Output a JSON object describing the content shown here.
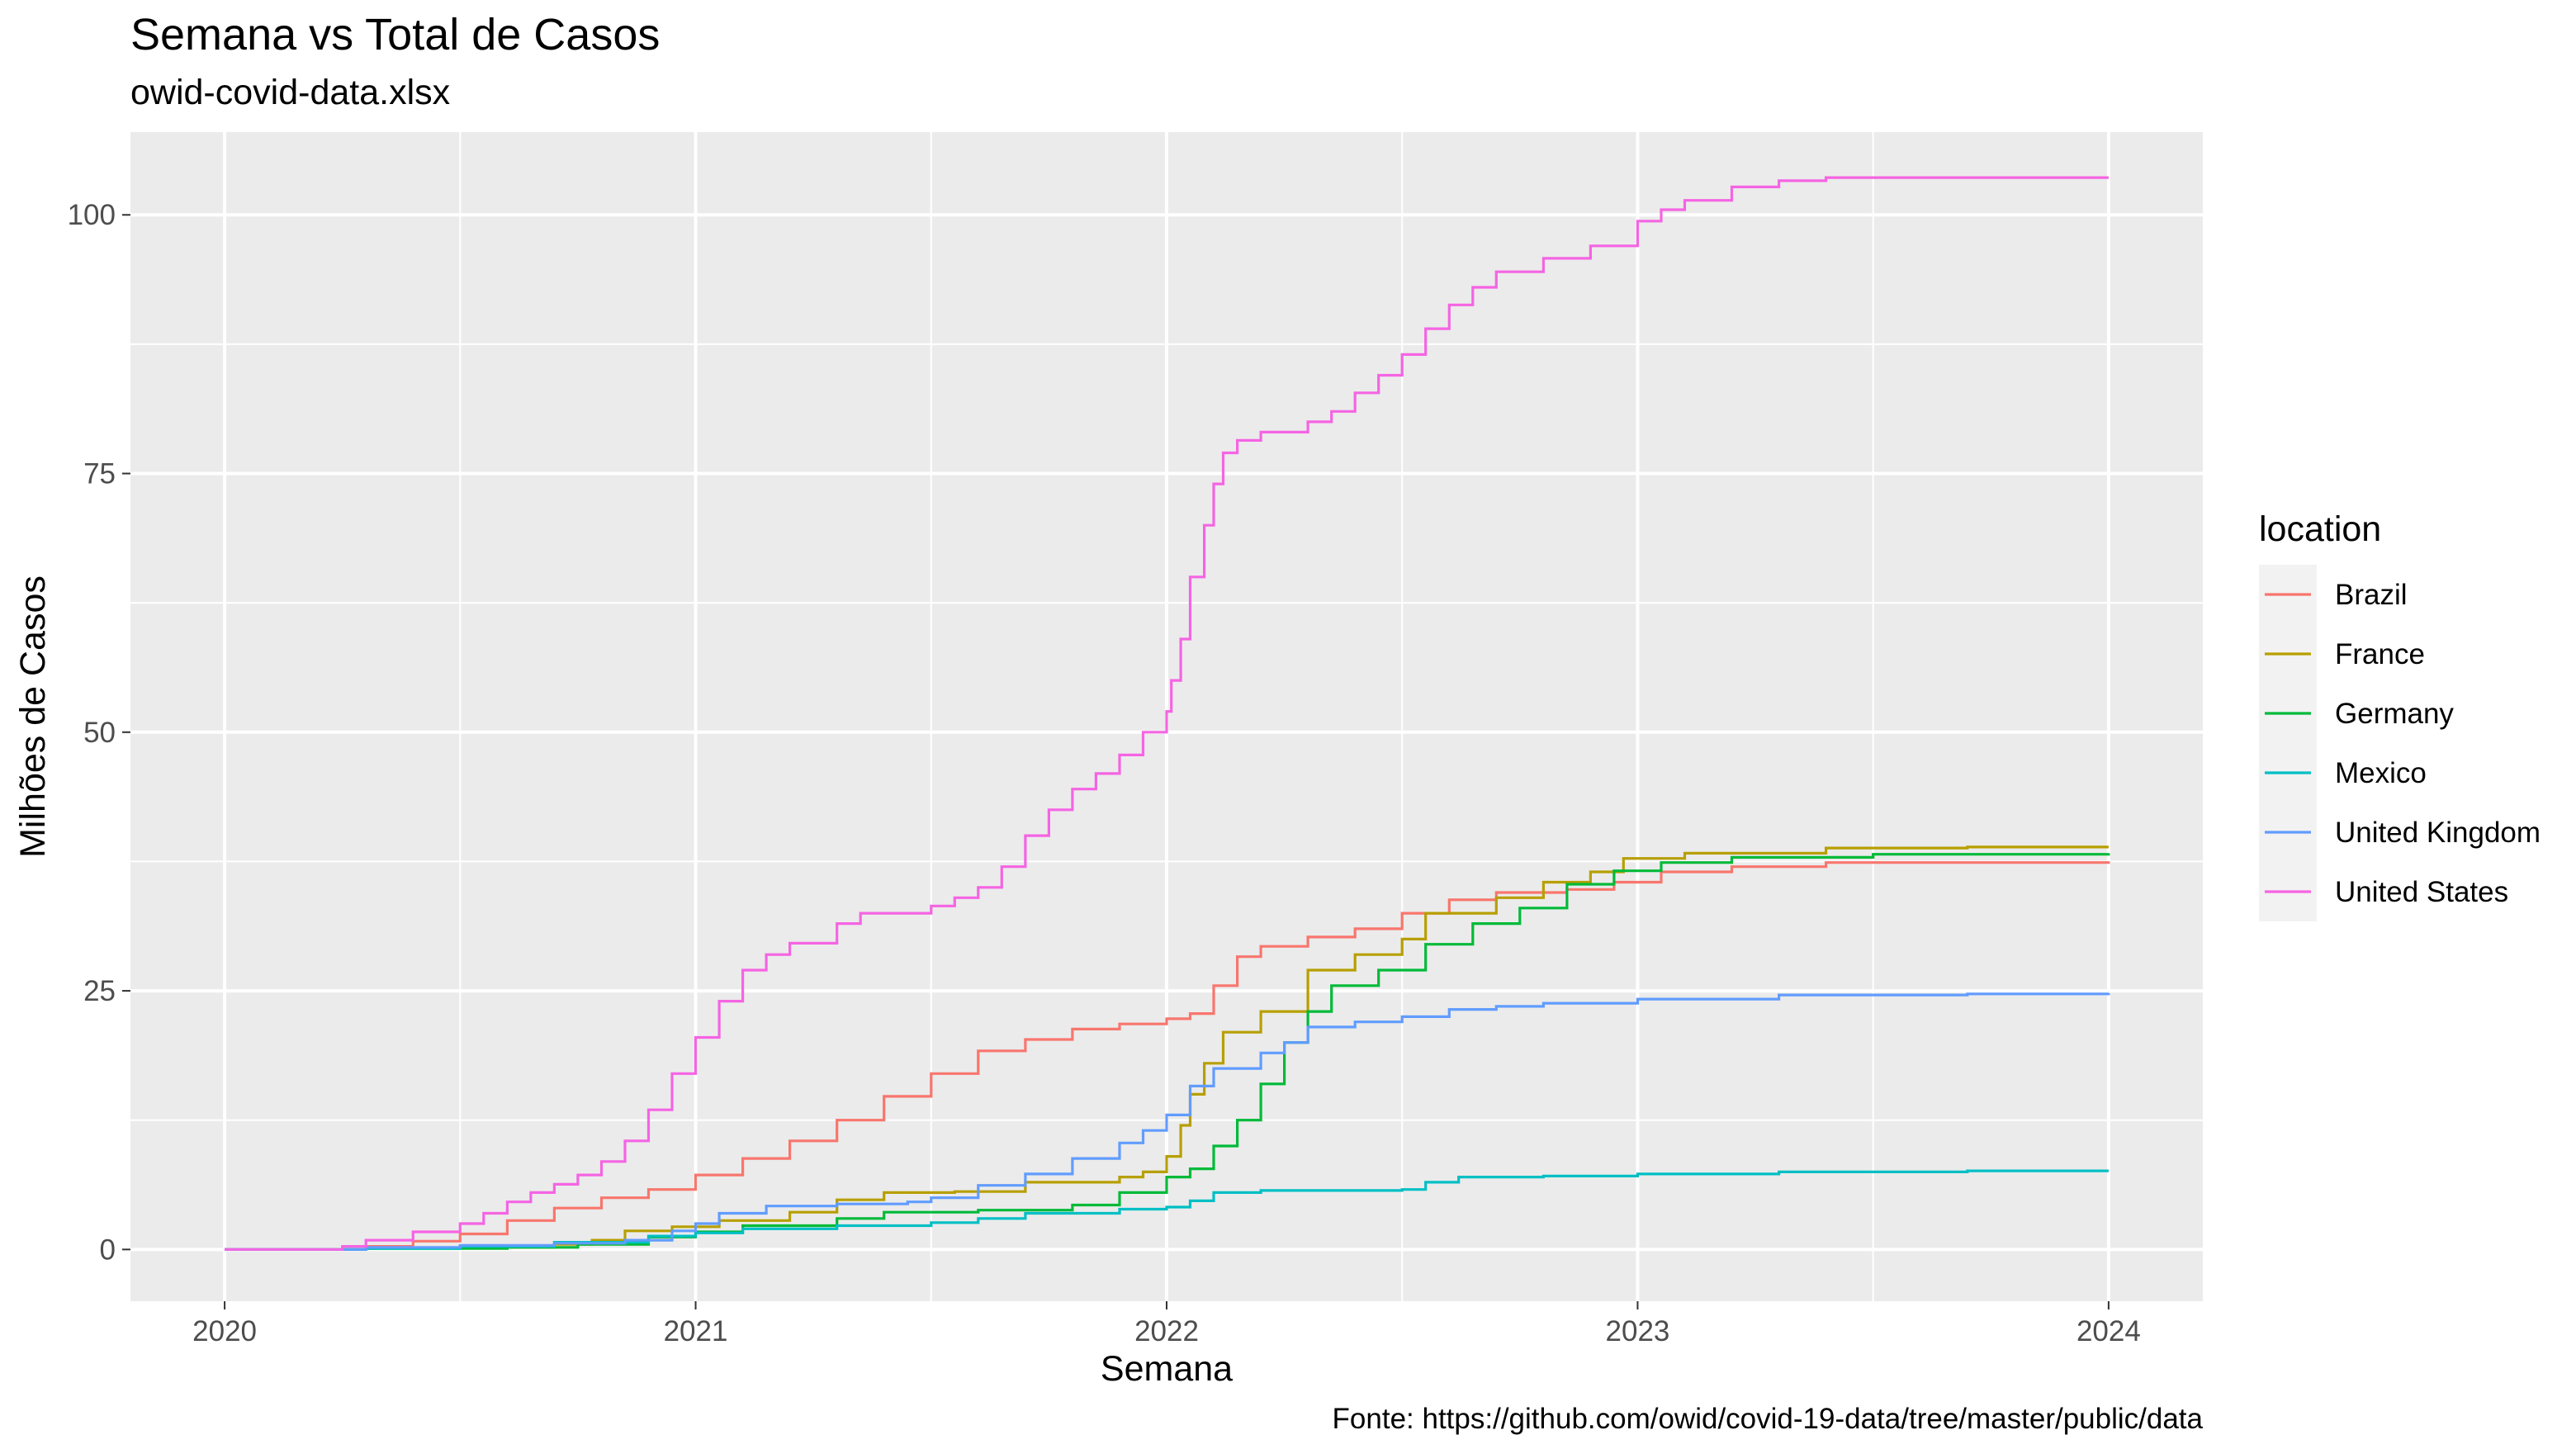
{
  "chart_data": {
    "type": "line",
    "title": "Semana vs Total de Casos",
    "subtitle": "owid-covid-data.xlsx",
    "xlabel": "Semana",
    "ylabel": "Milhões de Casos",
    "caption": "Fonte: https://github.com/owid/covid-19-data/tree/master/public/data",
    "legend_title": "location",
    "legend_position": "right",
    "grid": true,
    "xlim": [
      2019.8,
      2024.2
    ],
    "ylim": [
      -5,
      108
    ],
    "x_ticks": [
      2020,
      2021,
      2022,
      2023,
      2024
    ],
    "y_ticks": [
      0,
      25,
      50,
      75,
      100
    ],
    "x_tick_labels": [
      "2020",
      "2021",
      "2022",
      "2023",
      "2024"
    ],
    "y_tick_labels": [
      "0",
      "25",
      "50",
      "75",
      "100"
    ],
    "series": [
      {
        "name": "Brazil",
        "color": "#F8766D",
        "points": [
          [
            2020.0,
            0
          ],
          [
            2020.2,
            0
          ],
          [
            2020.3,
            0.3
          ],
          [
            2020.4,
            0.8
          ],
          [
            2020.5,
            1.5
          ],
          [
            2020.6,
            2.8
          ],
          [
            2020.7,
            4
          ],
          [
            2020.8,
            5
          ],
          [
            2020.9,
            5.8
          ],
          [
            2021.0,
            7.2
          ],
          [
            2021.1,
            8.8
          ],
          [
            2021.2,
            10.5
          ],
          [
            2021.3,
            12.5
          ],
          [
            2021.4,
            14.8
          ],
          [
            2021.5,
            17
          ],
          [
            2021.6,
            19.2
          ],
          [
            2021.7,
            20.3
          ],
          [
            2021.8,
            21.3
          ],
          [
            2021.9,
            21.8
          ],
          [
            2022.0,
            22.3
          ],
          [
            2022.05,
            22.8
          ],
          [
            2022.1,
            25.5
          ],
          [
            2022.15,
            28.3
          ],
          [
            2022.2,
            29.3
          ],
          [
            2022.3,
            30.2
          ],
          [
            2022.4,
            31
          ],
          [
            2022.5,
            32.5
          ],
          [
            2022.6,
            33.8
          ],
          [
            2022.7,
            34.5
          ],
          [
            2022.85,
            34.8
          ],
          [
            2022.95,
            35.5
          ],
          [
            2023.05,
            36.5
          ],
          [
            2023.2,
            37
          ],
          [
            2023.4,
            37.4
          ],
          [
            2023.7,
            37.4
          ],
          [
            2024.0,
            37.5
          ]
        ]
      },
      {
        "name": "France",
        "color": "#B79F00",
        "points": [
          [
            2020.0,
            0
          ],
          [
            2020.3,
            0.1
          ],
          [
            2020.5,
            0.2
          ],
          [
            2020.7,
            0.5
          ],
          [
            2020.78,
            0.9
          ],
          [
            2020.85,
            1.8
          ],
          [
            2020.95,
            2.2
          ],
          [
            2021.05,
            2.8
          ],
          [
            2021.2,
            3.6
          ],
          [
            2021.3,
            4.8
          ],
          [
            2021.4,
            5.5
          ],
          [
            2021.55,
            5.6
          ],
          [
            2021.7,
            6.5
          ],
          [
            2021.9,
            7
          ],
          [
            2021.95,
            7.5
          ],
          [
            2022.0,
            9
          ],
          [
            2022.03,
            12
          ],
          [
            2022.05,
            15
          ],
          [
            2022.08,
            18
          ],
          [
            2022.12,
            21
          ],
          [
            2022.2,
            23
          ],
          [
            2022.3,
            27
          ],
          [
            2022.4,
            28.5
          ],
          [
            2022.5,
            30
          ],
          [
            2022.55,
            32.5
          ],
          [
            2022.7,
            34
          ],
          [
            2022.8,
            35.5
          ],
          [
            2022.9,
            36.5
          ],
          [
            2022.97,
            37.8
          ],
          [
            2023.1,
            38.3
          ],
          [
            2023.4,
            38.8
          ],
          [
            2023.7,
            38.9
          ],
          [
            2024.0,
            38.9
          ]
        ]
      },
      {
        "name": "Germany",
        "color": "#00BA38",
        "points": [
          [
            2020.0,
            0
          ],
          [
            2020.3,
            0.1
          ],
          [
            2020.6,
            0.2
          ],
          [
            2020.75,
            0.5
          ],
          [
            2020.9,
            1.2
          ],
          [
            2021.0,
            1.7
          ],
          [
            2021.1,
            2.3
          ],
          [
            2021.3,
            3
          ],
          [
            2021.4,
            3.6
          ],
          [
            2021.6,
            3.8
          ],
          [
            2021.8,
            4.3
          ],
          [
            2021.9,
            5.5
          ],
          [
            2022.0,
            7
          ],
          [
            2022.05,
            7.8
          ],
          [
            2022.1,
            10
          ],
          [
            2022.15,
            12.5
          ],
          [
            2022.2,
            16
          ],
          [
            2022.25,
            20
          ],
          [
            2022.3,
            23
          ],
          [
            2022.35,
            25.5
          ],
          [
            2022.45,
            27
          ],
          [
            2022.55,
            29.5
          ],
          [
            2022.65,
            31.5
          ],
          [
            2022.75,
            33
          ],
          [
            2022.85,
            35.3
          ],
          [
            2022.95,
            36.6
          ],
          [
            2023.05,
            37.4
          ],
          [
            2023.2,
            37.9
          ],
          [
            2023.5,
            38.2
          ],
          [
            2024.0,
            38.3
          ]
        ]
      },
      {
        "name": "Mexico",
        "color": "#00BFC4",
        "points": [
          [
            2020.0,
            0
          ],
          [
            2020.3,
            0.1
          ],
          [
            2020.5,
            0.3
          ],
          [
            2020.7,
            0.7
          ],
          [
            2020.9,
            1.3
          ],
          [
            2021.0,
            1.6
          ],
          [
            2021.1,
            2
          ],
          [
            2021.3,
            2.3
          ],
          [
            2021.5,
            2.6
          ],
          [
            2021.6,
            3
          ],
          [
            2021.7,
            3.5
          ],
          [
            2021.9,
            3.9
          ],
          [
            2022.0,
            4.1
          ],
          [
            2022.05,
            4.7
          ],
          [
            2022.1,
            5.5
          ],
          [
            2022.2,
            5.7
          ],
          [
            2022.5,
            5.8
          ],
          [
            2022.55,
            6.5
          ],
          [
            2022.62,
            7
          ],
          [
            2022.8,
            7.1
          ],
          [
            2023.0,
            7.3
          ],
          [
            2023.3,
            7.5
          ],
          [
            2023.7,
            7.6
          ],
          [
            2024.0,
            7.6
          ]
        ]
      },
      {
        "name": "United Kingdom",
        "color": "#619CFF",
        "points": [
          [
            2020.0,
            0
          ],
          [
            2020.3,
            0.2
          ],
          [
            2020.5,
            0.4
          ],
          [
            2020.7,
            0.6
          ],
          [
            2020.85,
            0.9
          ],
          [
            2020.95,
            1.8
          ],
          [
            2021.0,
            2.5
          ],
          [
            2021.05,
            3.5
          ],
          [
            2021.15,
            4.2
          ],
          [
            2021.3,
            4.4
          ],
          [
            2021.45,
            4.6
          ],
          [
            2021.5,
            5
          ],
          [
            2021.6,
            6.2
          ],
          [
            2021.7,
            7.3
          ],
          [
            2021.8,
            8.8
          ],
          [
            2021.9,
            10.3
          ],
          [
            2021.95,
            11.5
          ],
          [
            2022.0,
            13
          ],
          [
            2022.05,
            15.8
          ],
          [
            2022.1,
            17.5
          ],
          [
            2022.2,
            19
          ],
          [
            2022.25,
            20
          ],
          [
            2022.3,
            21.5
          ],
          [
            2022.4,
            22
          ],
          [
            2022.5,
            22.5
          ],
          [
            2022.6,
            23.2
          ],
          [
            2022.7,
            23.5
          ],
          [
            2022.8,
            23.8
          ],
          [
            2023.0,
            24.2
          ],
          [
            2023.3,
            24.6
          ],
          [
            2023.7,
            24.7
          ],
          [
            2024.0,
            24.8
          ]
        ]
      },
      {
        "name": "United States",
        "color": "#F564E3",
        "points": [
          [
            2020.0,
            0
          ],
          [
            2020.2,
            0
          ],
          [
            2020.25,
            0.3
          ],
          [
            2020.3,
            0.9
          ],
          [
            2020.4,
            1.7
          ],
          [
            2020.5,
            2.5
          ],
          [
            2020.55,
            3.5
          ],
          [
            2020.6,
            4.6
          ],
          [
            2020.65,
            5.5
          ],
          [
            2020.7,
            6.3
          ],
          [
            2020.75,
            7.2
          ],
          [
            2020.8,
            8.5
          ],
          [
            2020.85,
            10.5
          ],
          [
            2020.9,
            13.5
          ],
          [
            2020.95,
            17
          ],
          [
            2021.0,
            20.5
          ],
          [
            2021.05,
            24
          ],
          [
            2021.1,
            27
          ],
          [
            2021.15,
            28.5
          ],
          [
            2021.2,
            29.6
          ],
          [
            2021.3,
            31.5
          ],
          [
            2021.35,
            32.5
          ],
          [
            2021.5,
            33.2
          ],
          [
            2021.55,
            34
          ],
          [
            2021.6,
            35
          ],
          [
            2021.65,
            37
          ],
          [
            2021.7,
            40
          ],
          [
            2021.75,
            42.5
          ],
          [
            2021.8,
            44.5
          ],
          [
            2021.85,
            46
          ],
          [
            2021.9,
            47.8
          ],
          [
            2021.95,
            50
          ],
          [
            2022.0,
            52
          ],
          [
            2022.01,
            55
          ],
          [
            2022.03,
            59
          ],
          [
            2022.05,
            65
          ],
          [
            2022.08,
            70
          ],
          [
            2022.1,
            74
          ],
          [
            2022.12,
            77
          ],
          [
            2022.15,
            78.2
          ],
          [
            2022.2,
            79
          ],
          [
            2022.3,
            80
          ],
          [
            2022.35,
            81
          ],
          [
            2022.4,
            82.8
          ],
          [
            2022.45,
            84.5
          ],
          [
            2022.5,
            86.5
          ],
          [
            2022.55,
            89
          ],
          [
            2022.6,
            91.3
          ],
          [
            2022.65,
            93
          ],
          [
            2022.7,
            94.5
          ],
          [
            2022.8,
            95.8
          ],
          [
            2022.9,
            97
          ],
          [
            2023.0,
            99.4
          ],
          [
            2023.05,
            100.5
          ],
          [
            2023.1,
            101.4
          ],
          [
            2023.2,
            102.7
          ],
          [
            2023.3,
            103.3
          ],
          [
            2023.4,
            103.6
          ],
          [
            2024.0,
            103.6
          ]
        ]
      }
    ]
  }
}
